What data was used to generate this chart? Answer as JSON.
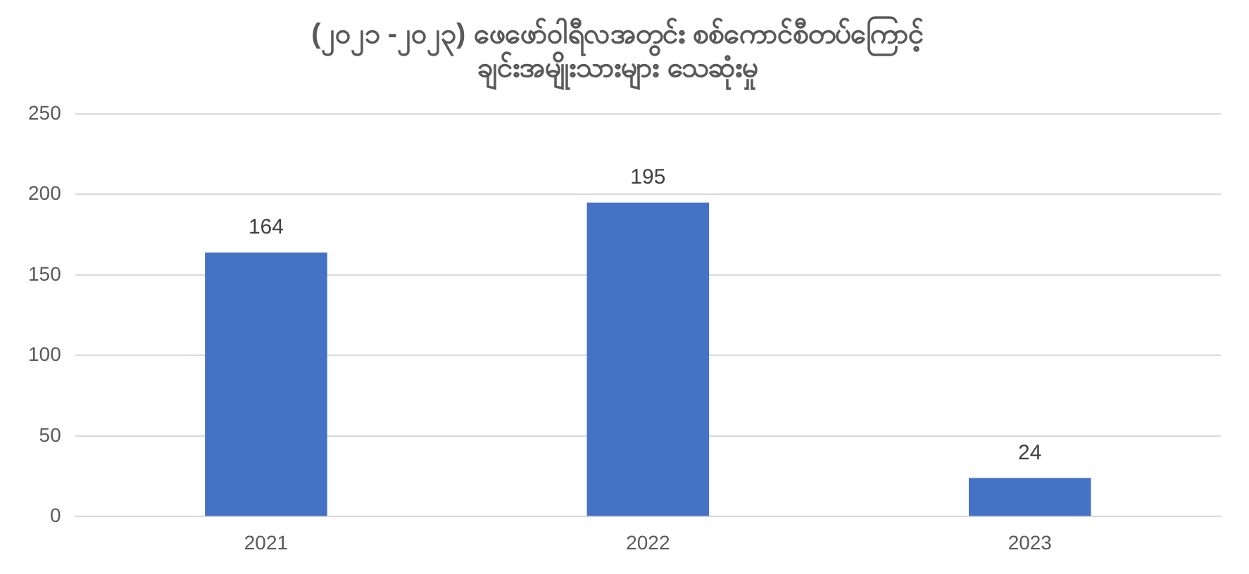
{
  "chart_data": {
    "type": "bar",
    "title": "(၂၀၂၁ -၂၀၂၃) ဖေဖော်ဝါရီလအတွင်း စစ်ကောင်စီတပ်ကြောင့်\nချင်းအမျိုးသားများ သေဆုံးမှု",
    "categories": [
      "2021",
      "2022",
      "2023"
    ],
    "values": [
      164,
      195,
      24
    ],
    "color": "#4472c4",
    "ylim": [
      0,
      250
    ],
    "yticks": [
      0,
      50,
      100,
      150,
      200,
      250
    ],
    "grid": "y",
    "legend": false,
    "data_labels": true
  }
}
